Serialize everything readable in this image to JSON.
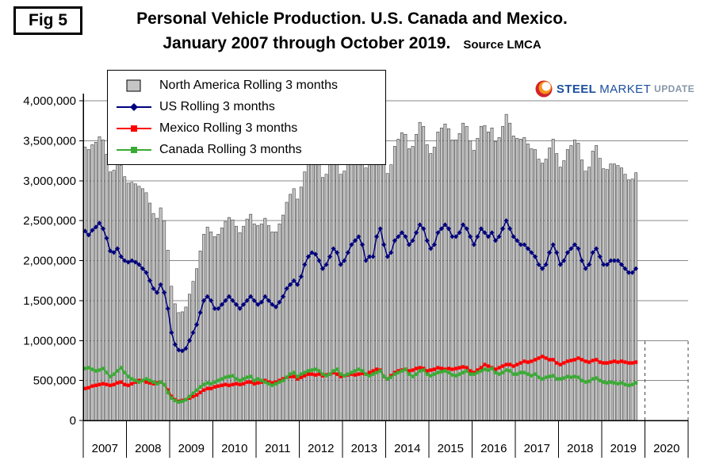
{
  "figure_label": "Fig 5",
  "title": {
    "line1": "Personal Vehicle Production. U.S. Canada and Mexico.",
    "line2": "January 2007 through October 2019.",
    "source": "Source LMCA"
  },
  "logo": {
    "word1": "STEEL",
    "word2": "MARKET",
    "word3": "UPDATE"
  },
  "chart_data": {
    "type": "combo-bar-line",
    "title": "Personal Vehicle Production. U.S. Canada and Mexico. January 2007 through October 2019.",
    "xlabel": "",
    "ylabel": "",
    "x_unit": "month",
    "x_start": "2007-01",
    "x_end": "2019-10",
    "x_axis_tick_labels": [
      "2007",
      "2008",
      "2009",
      "2010",
      "2011",
      "2012",
      "2013",
      "2014",
      "2015",
      "2016",
      "2017",
      "2018",
      "2019",
      "2020"
    ],
    "y_ticks": [
      0,
      500000,
      1000000,
      1500000,
      2000000,
      2500000,
      3000000,
      3500000,
      4000000
    ],
    "ylim": [
      0,
      4000000
    ],
    "grid": "horizontal",
    "legend_position": "top-left-overlay",
    "series": [
      {
        "name": "North America Rolling 3 months",
        "type": "bar",
        "color": "#c5c5c5",
        "values": [
          3420000,
          3390000,
          3450000,
          3480000,
          3550000,
          3510000,
          3330000,
          3110000,
          3130000,
          3240000,
          3190000,
          3050000,
          2970000,
          2980000,
          2960000,
          2930000,
          2900000,
          2850000,
          2720000,
          2590000,
          2530000,
          2660000,
          2500000,
          2130000,
          1680000,
          1460000,
          1350000,
          1360000,
          1420000,
          1580000,
          1740000,
          1900000,
          2120000,
          2330000,
          2420000,
          2360000,
          2300000,
          2330000,
          2410000,
          2490000,
          2540000,
          2510000,
          2430000,
          2350000,
          2430000,
          2520000,
          2580000,
          2460000,
          2440000,
          2460000,
          2530000,
          2440000,
          2360000,
          2360000,
          2460000,
          2570000,
          2730000,
          2830000,
          2900000,
          2770000,
          2920000,
          3110000,
          3250000,
          3310000,
          3290000,
          3200000,
          3040000,
          3080000,
          3210000,
          3370000,
          3320000,
          3080000,
          3120000,
          3250000,
          3380000,
          3440000,
          3520000,
          3410000,
          3160000,
          3210000,
          3250000,
          3540000,
          3650000,
          3300000,
          3090000,
          3200000,
          3430000,
          3520000,
          3600000,
          3580000,
          3400000,
          3430000,
          3580000,
          3730000,
          3680000,
          3450000,
          3340000,
          3420000,
          3610000,
          3660000,
          3710000,
          3650000,
          3510000,
          3510000,
          3590000,
          3720000,
          3680000,
          3500000,
          3380000,
          3530000,
          3680000,
          3690000,
          3610000,
          3660000,
          3490000,
          3540000,
          3680000,
          3830000,
          3720000,
          3560000,
          3530000,
          3520000,
          3540000,
          3460000,
          3400000,
          3390000,
          3270000,
          3220000,
          3270000,
          3410000,
          3520000,
          3340000,
          3170000,
          3250000,
          3390000,
          3440000,
          3510000,
          3470000,
          3260000,
          3120000,
          3170000,
          3370000,
          3440000,
          3280000,
          3150000,
          3140000,
          3210000,
          3210000,
          3190000,
          3160000,
          3080000,
          3010000,
          3020000,
          3100000
        ]
      },
      {
        "name": "US Rolling 3 months",
        "type": "line",
        "marker": "diamond",
        "color": "#000080",
        "values": [
          2370000,
          2320000,
          2380000,
          2420000,
          2470000,
          2400000,
          2280000,
          2120000,
          2100000,
          2150000,
          2050000,
          2000000,
          1980000,
          2000000,
          1980000,
          1950000,
          1900000,
          1850000,
          1750000,
          1650000,
          1600000,
          1700000,
          1600000,
          1400000,
          1100000,
          950000,
          880000,
          870000,
          900000,
          1000000,
          1100000,
          1200000,
          1350000,
          1500000,
          1550000,
          1500000,
          1400000,
          1400000,
          1450000,
          1500000,
          1550000,
          1500000,
          1450000,
          1400000,
          1450000,
          1500000,
          1550000,
          1500000,
          1450000,
          1480000,
          1550000,
          1500000,
          1450000,
          1420000,
          1480000,
          1550000,
          1650000,
          1700000,
          1750000,
          1700000,
          1800000,
          1950000,
          2050000,
          2100000,
          2080000,
          2000000,
          1900000,
          1950000,
          2050000,
          2150000,
          2100000,
          1950000,
          2000000,
          2100000,
          2200000,
          2250000,
          2300000,
          2200000,
          2000000,
          2050000,
          2050000,
          2300000,
          2400000,
          2200000,
          2050000,
          2100000,
          2250000,
          2300000,
          2350000,
          2300000,
          2200000,
          2250000,
          2350000,
          2450000,
          2400000,
          2250000,
          2150000,
          2200000,
          2350000,
          2400000,
          2450000,
          2400000,
          2300000,
          2300000,
          2350000,
          2450000,
          2400000,
          2300000,
          2200000,
          2300000,
          2400000,
          2350000,
          2300000,
          2350000,
          2250000,
          2300000,
          2400000,
          2500000,
          2400000,
          2300000,
          2250000,
          2200000,
          2200000,
          2150000,
          2100000,
          2050000,
          1950000,
          1900000,
          1950000,
          2100000,
          2200000,
          2100000,
          1950000,
          2000000,
          2100000,
          2150000,
          2200000,
          2150000,
          2000000,
          1900000,
          1950000,
          2100000,
          2150000,
          2050000,
          1950000,
          1950000,
          2000000,
          2000000,
          2000000,
          1950000,
          1900000,
          1850000,
          1850000,
          1900000
        ]
      },
      {
        "name": "Mexico Rolling 3 months",
        "type": "line",
        "marker": "square",
        "color": "#ff0000",
        "values": [
          400000,
          410000,
          430000,
          440000,
          450000,
          460000,
          450000,
          440000,
          450000,
          470000,
          480000,
          450000,
          440000,
          460000,
          480000,
          500000,
          500000,
          480000,
          470000,
          460000,
          470000,
          480000,
          450000,
          380000,
          300000,
          260000,
          240000,
          250000,
          260000,
          280000,
          300000,
          320000,
          350000,
          380000,
          400000,
          400000,
          420000,
          430000,
          440000,
          450000,
          440000,
          450000,
          460000,
          450000,
          460000,
          480000,
          480000,
          460000,
          470000,
          480000,
          500000,
          480000,
          470000,
          480000,
          500000,
          520000,
          540000,
          550000,
          550000,
          520000,
          540000,
          560000,
          580000,
          580000,
          570000,
          580000,
          560000,
          570000,
          580000,
          600000,
          580000,
          550000,
          560000,
          570000,
          580000,
          570000,
          580000,
          590000,
          580000,
          600000,
          620000,
          640000,
          630000,
          550000,
          520000,
          560000,
          600000,
          620000,
          630000,
          640000,
          620000,
          630000,
          650000,
          660000,
          650000,
          620000,
          630000,
          640000,
          660000,
          650000,
          640000,
          650000,
          640000,
          650000,
          660000,
          670000,
          660000,
          620000,
          600000,
          630000,
          660000,
          700000,
          680000,
          660000,
          640000,
          660000,
          680000,
          700000,
          700000,
          680000,
          700000,
          720000,
          740000,
          730000,
          740000,
          760000,
          780000,
          800000,
          780000,
          760000,
          760000,
          720000,
          700000,
          720000,
          740000,
          750000,
          760000,
          780000,
          760000,
          740000,
          730000,
          750000,
          760000,
          730000,
          720000,
          720000,
          730000,
          740000,
          730000,
          740000,
          730000,
          720000,
          720000,
          730000
        ]
      },
      {
        "name": "Canada Rolling 3 months",
        "type": "line",
        "marker": "square",
        "color": "#3aaa35",
        "values": [
          650000,
          660000,
          640000,
          620000,
          630000,
          650000,
          600000,
          550000,
          580000,
          620000,
          660000,
          600000,
          550000,
          520000,
          500000,
          480000,
          500000,
          520000,
          500000,
          480000,
          460000,
          480000,
          450000,
          350000,
          280000,
          250000,
          230000,
          240000,
          260000,
          300000,
          340000,
          380000,
          420000,
          450000,
          470000,
          460000,
          480000,
          500000,
          520000,
          540000,
          550000,
          560000,
          520000,
          500000,
          520000,
          540000,
          550000,
          500000,
          520000,
          500000,
          480000,
          460000,
          440000,
          460000,
          480000,
          500000,
          540000,
          580000,
          600000,
          550000,
          580000,
          600000,
          620000,
          630000,
          640000,
          620000,
          580000,
          560000,
          580000,
          620000,
          640000,
          580000,
          560000,
          580000,
          600000,
          620000,
          640000,
          620000,
          580000,
          560000,
          580000,
          600000,
          620000,
          550000,
          520000,
          540000,
          580000,
          600000,
          620000,
          640000,
          580000,
          550000,
          580000,
          620000,
          630000,
          580000,
          560000,
          580000,
          600000,
          610000,
          620000,
          600000,
          570000,
          560000,
          580000,
          600000,
          620000,
          580000,
          580000,
          600000,
          620000,
          640000,
          630000,
          650000,
          600000,
          580000,
          600000,
          630000,
          620000,
          580000,
          580000,
          600000,
          600000,
          580000,
          560000,
          580000,
          540000,
          520000,
          540000,
          550000,
          560000,
          520000,
          520000,
          530000,
          550000,
          540000,
          550000,
          540000,
          500000,
          480000,
          490000,
          520000,
          530000,
          500000,
          480000,
          470000,
          480000,
          470000,
          460000,
          470000,
          450000,
          440000,
          450000,
          470000
        ]
      }
    ]
  }
}
